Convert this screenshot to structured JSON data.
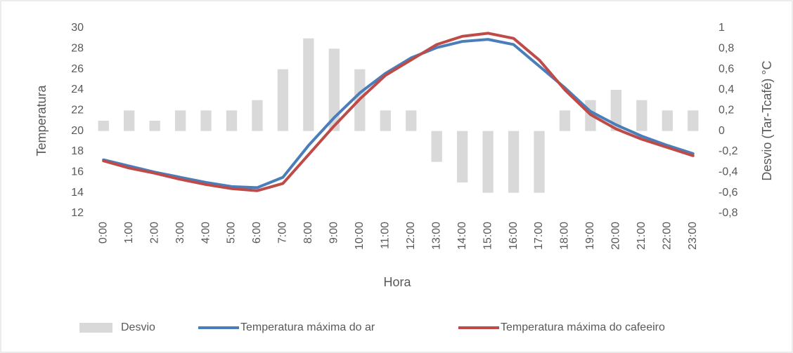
{
  "chart_data": {
    "type": "combo",
    "x_label": "Hora",
    "y_label": "Temperatura",
    "y2_label": "Desvio (Tar-Tcafé) °C",
    "categories": [
      "0:00",
      "1:00",
      "2:00",
      "3:00",
      "4:00",
      "5:00",
      "6:00",
      "7:00",
      "8:00",
      "9:00",
      "10:00",
      "11:00",
      "12:00",
      "13:00",
      "14:00",
      "15:00",
      "16:00",
      "17:00",
      "18:00",
      "19:00",
      "20:00",
      "21:00",
      "22:00",
      "23:00"
    ],
    "series": [
      {
        "name": "Desvio",
        "type": "bar",
        "axis": "y2",
        "color": "#d9d9d9",
        "values": [
          0.1,
          0.2,
          0.1,
          0.2,
          0.2,
          0.2,
          0.3,
          0.6,
          0.9,
          0.8,
          0.6,
          0.2,
          0.2,
          -0.3,
          -0.5,
          -0.6,
          -0.6,
          -0.6,
          0.2,
          0.3,
          0.4,
          0.3,
          0.2,
          0.2
        ]
      },
      {
        "name": "Temperatura máxima do ar",
        "type": "line",
        "color": "#4a7ebb",
        "values": [
          17.2,
          16.6,
          16.0,
          15.5,
          15.0,
          14.6,
          14.5,
          15.5,
          18.6,
          21.3,
          23.7,
          25.6,
          27.1,
          28.1,
          28.7,
          28.9,
          28.4,
          26.3,
          24.2,
          21.9,
          20.6,
          19.5,
          18.6,
          17.8
        ]
      },
      {
        "name": "Temperatura máxima do cafeeiro",
        "type": "line",
        "color": "#be4b48",
        "values": [
          17.1,
          16.4,
          15.9,
          15.3,
          14.8,
          14.4,
          14.2,
          14.9,
          17.7,
          20.5,
          23.1,
          25.4,
          26.9,
          28.4,
          29.2,
          29.5,
          29.0,
          26.9,
          24.0,
          21.6,
          20.2,
          19.2,
          18.4,
          17.6
        ]
      }
    ],
    "ylim": [
      12,
      30
    ],
    "yticks": [
      12,
      14,
      16,
      18,
      20,
      22,
      24,
      26,
      28,
      30
    ],
    "y2lim": [
      -0.8,
      1
    ],
    "y2ticks": [
      {
        "value": -0.8,
        "label": "-0,8"
      },
      {
        "value": -0.6,
        "label": "-0,6"
      },
      {
        "value": -0.4,
        "label": "-0,4"
      },
      {
        "value": -0.2,
        "label": "-0,2"
      },
      0,
      {
        "value": 0.2,
        "label": "0,2"
      },
      {
        "value": 0.4,
        "label": "0,4"
      },
      {
        "value": 0.6,
        "label": "0,6"
      },
      {
        "value": 0.8,
        "label": "0,8"
      },
      1
    ],
    "legend": "bottom",
    "grid": false
  }
}
